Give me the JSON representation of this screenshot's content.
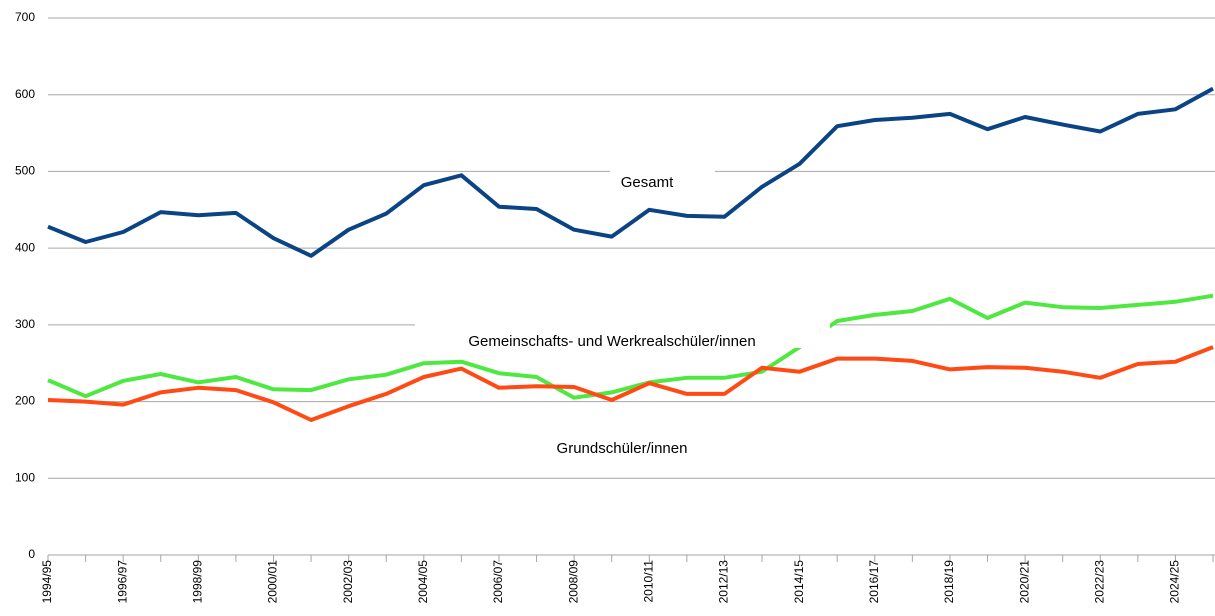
{
  "chart_data": {
    "type": "line",
    "categories": [
      "1994/95",
      null,
      "1996/97",
      null,
      "1998/99",
      null,
      "2000/01",
      null,
      "2002/03",
      null,
      "2004/05",
      null,
      "2006/07",
      null,
      "2008/09",
      null,
      "2010/11",
      null,
      "2012/13",
      null,
      "2014/15",
      null,
      "2016/17",
      null,
      "2018/19",
      null,
      "2020/21",
      null,
      "2022/23",
      null,
      "2024/25",
      null
    ],
    "series": [
      {
        "name": "Gesamt",
        "color": "#0b4484",
        "values": [
          428,
          408,
          421,
          447,
          443,
          446,
          413,
          390,
          424,
          445,
          482,
          495,
          454,
          451,
          424,
          415,
          450,
          442,
          441,
          480,
          510,
          559,
          567,
          570,
          575,
          555,
          571,
          561,
          552,
          575,
          581,
          608
        ]
      },
      {
        "name": "Gemeinschafts- und Werkrealschüler/innen",
        "color": "#4ee840",
        "values": [
          228,
          207,
          227,
          236,
          225,
          232,
          216,
          215,
          229,
          235,
          250,
          252,
          237,
          232,
          205,
          212,
          225,
          231,
          231,
          239,
          271,
          305,
          313,
          318,
          334,
          309,
          329,
          323,
          322,
          326,
          330,
          338
        ]
      },
      {
        "name": "Grundschüler/innen",
        "color": "#ff4a14",
        "values": [
          202,
          200,
          196,
          212,
          218,
          215,
          199,
          176,
          194,
          210,
          232,
          243,
          218,
          220,
          219,
          202,
          224,
          210,
          210,
          244,
          239,
          256,
          256,
          253,
          242,
          245,
          244,
          239,
          231,
          249,
          252,
          271
        ]
      }
    ],
    "ylim": [
      0,
      700
    ],
    "yticks": [
      0,
      100,
      200,
      300,
      400,
      500,
      600,
      700
    ],
    "grid": true
  }
}
